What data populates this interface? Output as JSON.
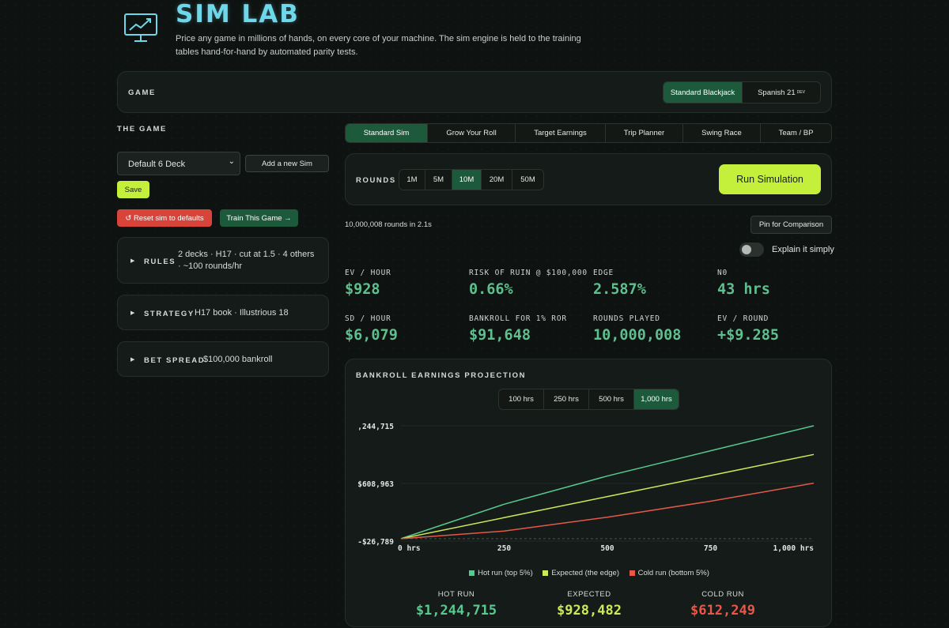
{
  "header": {
    "title": "SIM LAB",
    "subtitle": "Price any game in millions of hands, on every core of your machine. The sim engine is held to the training tables hand-for-hand by automated parity tests."
  },
  "game_panel": {
    "label": "GAME",
    "options": [
      "Standard Blackjack",
      "Spanish 21"
    ],
    "spanish_badge": "DEV",
    "selected": "Standard Blackjack"
  },
  "left": {
    "section_title": "THE GAME",
    "sim_select_value": "Default 6 Deck",
    "add_sim_label": "Add a new Sim",
    "save_label": "Save",
    "reset_label": "↺ Reset sim to defaults",
    "train_label": "Train This Game →",
    "rules_key": "RULES",
    "rules_val": "2 decks · H17 · cut at 1.5 · 4 others · ~100 rounds/hr",
    "strategy_key": "STRATEGY",
    "strategy_val": "H17 book · Illustrious 18",
    "bet_key": "BET SPREAD",
    "bet_val": "$100,000 bankroll"
  },
  "tabs": [
    "Standard Sim",
    "Grow Your Roll",
    "Target Earnings",
    "Trip Planner",
    "Swing Race",
    "Team / BP"
  ],
  "active_tab": "Standard Sim",
  "rounds": {
    "label": "ROUNDS",
    "options": [
      "1M",
      "5M",
      "10M",
      "20M",
      "50M"
    ],
    "selected": "10M",
    "run_label": "Run Simulation"
  },
  "status": {
    "rounds_text": "10,000,008 rounds in 2.1s",
    "pin_label": "Pin for Comparison",
    "explain_label": "Explain it simply",
    "explain_on": false
  },
  "stats": [
    {
      "label": "EV / HOUR",
      "value": "$928"
    },
    {
      "label": "RISK OF RUIN @ $100,000",
      "value": "0.66%"
    },
    {
      "label": "EDGE",
      "value": "2.587%"
    },
    {
      "label": "N0",
      "value": "43 hrs"
    },
    {
      "label": "SD / HOUR",
      "value": "$6,079"
    },
    {
      "label": "BANKROLL FOR 1% ROR",
      "value": "$91,648"
    },
    {
      "label": "ROUNDS PLAYED",
      "value": "10,000,008"
    },
    {
      "label": "EV / ROUND",
      "value": "+$9.285"
    }
  ],
  "projection": {
    "title": "BANKROLL EARNINGS PROJECTION",
    "horizons": [
      "100 hrs",
      "250 hrs",
      "500 hrs",
      "1,000 hrs"
    ],
    "selected_horizon": "1,000 hrs",
    "legend": [
      "Hot run (top 5%)",
      "Expected (the edge)",
      "Cold run (bottom 5%)"
    ],
    "summary": [
      {
        "label": "HOT RUN",
        "value": "$1,244,715"
      },
      {
        "label": "EXPECTED",
        "value": "$928,482"
      },
      {
        "label": "COLD RUN",
        "value": "$612,249"
      }
    ]
  },
  "colors": {
    "accent_green": "#1d5a3b",
    "lime": "#c4f03c",
    "hot": "#58c98f",
    "expected": "#cfe85a",
    "cold": "#e5584a",
    "title_cyan": "#6fd7ea",
    "danger": "#d9443a"
  },
  "chart_data": {
    "type": "line",
    "title": "BANKROLL EARNINGS PROJECTION",
    "x": [
      0,
      250,
      500,
      750,
      1000
    ],
    "x_tick_labels": [
      "0 hrs",
      "250",
      "500",
      "750",
      "1,000 hrs"
    ],
    "y_tick_labels": [
      ",244,715",
      "$608,963",
      "-$26,789"
    ],
    "ylim": [
      -26789,
      1244715
    ],
    "xlim": [
      0,
      1000
    ],
    "series": [
      {
        "name": "Hot run (top 5%)",
        "values": [
          0,
          380000,
          691000,
          969000,
          1244715
        ]
      },
      {
        "name": "Expected (the edge)",
        "values": [
          0,
          232000,
          464000,
          696000,
          928482
        ]
      },
      {
        "name": "Cold run (bottom 5%)",
        "values": [
          0,
          84000,
          237000,
          413000,
          612249
        ]
      }
    ],
    "zero_line": true
  }
}
